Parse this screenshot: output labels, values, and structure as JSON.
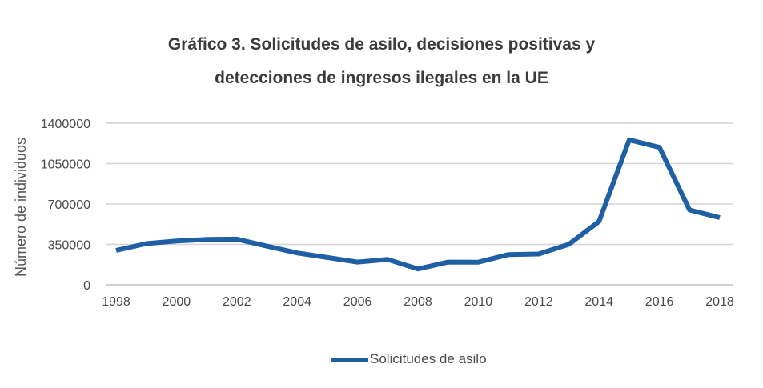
{
  "chart_data": {
    "type": "line",
    "title": "Gráfico 3. Solicitudes de asilo, decisiones positivas y detecciones de ingresos ilegales en la UE",
    "title_lines": [
      "Gráfico 3. Solicitudes de asilo, decisiones positivas y",
      "detecciones de ingresos ilegales en la UE"
    ],
    "xlabel": "",
    "ylabel": "Número de individuos",
    "x": [
      1998,
      1999,
      2000,
      2001,
      2002,
      2003,
      2004,
      2005,
      2006,
      2007,
      2008,
      2009,
      2010,
      2011,
      2012,
      2013,
      2014,
      2015,
      2016,
      2017,
      2018
    ],
    "series": [
      {
        "name": "Solicitudes de asilo",
        "color": "#1f5fa3",
        "values": [
          298000,
          357000,
          380000,
          393000,
          396000,
          335000,
          276000,
          236000,
          197000,
          220000,
          137000,
          197000,
          196000,
          262000,
          267000,
          351000,
          549000,
          1256000,
          1191000,
          648000,
          582000
        ]
      }
    ],
    "xticks": [
      "1998",
      "2000",
      "2002",
      "2004",
      "2006",
      "2008",
      "2010",
      "2012",
      "2014",
      "2016",
      "2018"
    ],
    "yticks": [
      "0",
      "350000",
      "700000",
      "1050000",
      "1400000"
    ],
    "xlim": [
      1998,
      2018
    ],
    "ylim": [
      0,
      1400000
    ],
    "grid": "horizontal",
    "legend_position": "bottom",
    "colors": {
      "series": "#1f5fa3",
      "grid": "#d3d3d3",
      "axis": "#bfbfbf"
    }
  }
}
